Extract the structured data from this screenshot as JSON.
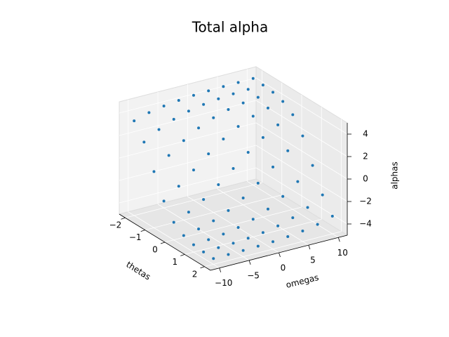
{
  "chart_data": {
    "type": "scatter3d",
    "title": "Total alpha",
    "x_label": "thetas",
    "y_label": "omegas",
    "z_label": "alphas",
    "color": "#1f77b4",
    "xlim": [
      -2.3,
      2.3
    ],
    "ylim": [
      -11.5,
      11.5
    ],
    "zlim": [
      -5,
      5
    ],
    "xticks": [
      {
        "value": -2,
        "label": "−2"
      },
      {
        "value": -1,
        "label": "−1"
      },
      0,
      1,
      2
    ],
    "yticks": [
      {
        "value": -10,
        "label": "−10"
      },
      {
        "value": -5,
        "label": "−5"
      },
      0,
      5,
      10
    ],
    "zticks": [
      {
        "value": -4,
        "label": "−4"
      },
      {
        "value": -2,
        "label": "−2"
      },
      0,
      2,
      4
    ],
    "x": [
      -2,
      -2,
      -2,
      -2,
      -2,
      -2,
      -2,
      -2,
      -2,
      -1.5,
      -1.5,
      -1.5,
      -1.5,
      -1.5,
      -1.5,
      -1.5,
      -1.5,
      -1.5,
      -1,
      -1,
      -1,
      -1,
      -1,
      -1,
      -1,
      -1,
      -1,
      -0.5,
      -0.5,
      -0.5,
      -0.5,
      -0.5,
      -0.5,
      -0.5,
      -0.5,
      -0.5,
      0,
      0,
      0,
      0,
      0,
      0,
      0,
      0,
      0,
      0.5,
      0.5,
      0.5,
      0.5,
      0.5,
      0.5,
      0.5,
      0.5,
      0.5,
      1,
      1,
      1,
      1,
      1,
      1,
      1,
      1,
      1,
      1.5,
      1.5,
      1.5,
      1.5,
      1.5,
      1.5,
      1.5,
      1.5,
      1.5,
      2,
      2,
      2,
      2,
      2,
      2,
      2,
      2,
      2
    ],
    "y": [
      -10,
      -7.5,
      -5,
      -2.5,
      0,
      2.5,
      5,
      7.5,
      10,
      -10,
      -7.5,
      -5,
      -2.5,
      0,
      2.5,
      5,
      7.5,
      10,
      -10,
      -7.5,
      -5,
      -2.5,
      0,
      2.5,
      5,
      7.5,
      10,
      -10,
      -7.5,
      -5,
      -2.5,
      0,
      2.5,
      5,
      7.5,
      10,
      -10,
      -7.5,
      -5,
      -2.5,
      0,
      2.5,
      5,
      7.5,
      10,
      -10,
      -7.5,
      -5,
      -2.5,
      0,
      2.5,
      5,
      7.5,
      10,
      -10,
      -7.5,
      -5,
      -2.5,
      0,
      2.5,
      5,
      7.5,
      10,
      -10,
      -7.5,
      -5,
      -2.5,
      0,
      2.5,
      5,
      7.5,
      10,
      -10,
      -7.5,
      -5,
      -2.5,
      0,
      2.5,
      5,
      7.5,
      10
    ],
    "z": [
      3.43,
      3.82,
      4.07,
      4.23,
      4.34,
      4.4,
      4.44,
      4.46,
      4.48,
      2.08,
      2.86,
      3.43,
      3.82,
      4.07,
      4.23,
      4.34,
      4.4,
      4.44,
      0,
      1.1,
      2.08,
      2.86,
      3.43,
      3.82,
      4.07,
      4.23,
      4.34,
      -2.08,
      -1.1,
      0,
      1.1,
      2.08,
      2.86,
      3.43,
      3.82,
      4.07,
      -3.43,
      -2.86,
      -2.08,
      -1.1,
      0,
      1.1,
      2.08,
      2.86,
      3.43,
      -4.07,
      -3.82,
      -3.43,
      -2.86,
      -2.08,
      -1.1,
      0,
      1.1,
      2.08,
      -4.34,
      -4.23,
      -4.07,
      -3.82,
      -3.43,
      -2.86,
      -2.08,
      -1.1,
      0,
      -4.44,
      -4.4,
      -4.34,
      -4.23,
      -4.07,
      -3.82,
      -3.43,
      -2.86,
      -2.08,
      -4.48,
      -4.46,
      -4.44,
      -4.4,
      -4.34,
      -4.23,
      -4.07,
      -3.82,
      -3.43
    ]
  }
}
